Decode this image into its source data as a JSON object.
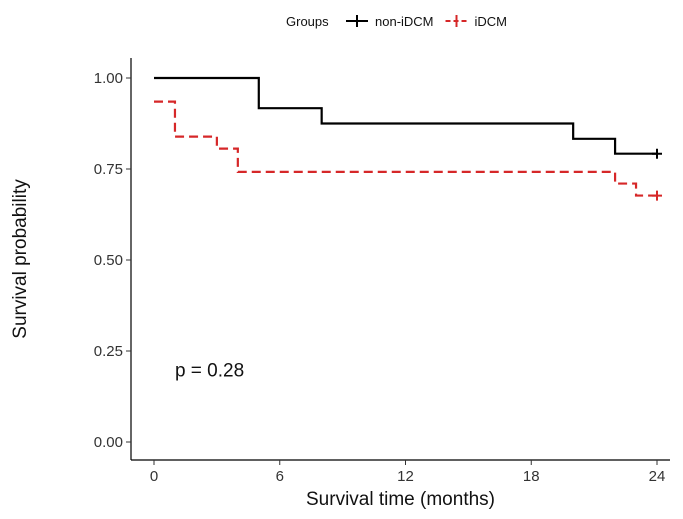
{
  "chart_data": {
    "type": "line",
    "subtype": "kaplan-meier step curves",
    "xlabel": "Survival time (months)",
    "ylabel": "Survival probability",
    "xlim": [
      0,
      24
    ],
    "ylim": [
      0,
      1
    ],
    "x_ticks": [
      "0",
      "6",
      "12",
      "18",
      "24"
    ],
    "y_ticks": [
      "0.00",
      "0.25",
      "0.50",
      "0.75",
      "1.00"
    ],
    "x_tick_values": [
      0,
      6,
      12,
      18,
      24
    ],
    "y_tick_values": [
      0,
      0.25,
      0.5,
      0.75,
      1.0
    ],
    "grid": false,
    "legend": {
      "title": "Groups",
      "position": "top",
      "entries": [
        "non-iDCM",
        "iDCM"
      ]
    },
    "annotation": "p = 0.28",
    "series": [
      {
        "name": "non-iDCM",
        "color": "#000000",
        "style": "solid",
        "steps": [
          [
            0,
            1.0
          ],
          [
            5,
            0.917
          ],
          [
            8,
            0.875
          ],
          [
            20,
            0.833
          ],
          [
            22,
            0.792
          ],
          [
            24,
            0.792
          ]
        ],
        "censored": [
          [
            24,
            0.792
          ]
        ]
      },
      {
        "name": "iDCM",
        "color": "#d62728",
        "style": "dashed",
        "steps": [
          [
            0,
            0.935
          ],
          [
            1,
            0.839
          ],
          [
            3,
            0.806
          ],
          [
            4,
            0.742
          ],
          [
            22,
            0.71
          ],
          [
            23,
            0.677
          ],
          [
            24,
            0.677
          ]
        ],
        "censored": [
          [
            24,
            0.677
          ]
        ]
      }
    ]
  }
}
